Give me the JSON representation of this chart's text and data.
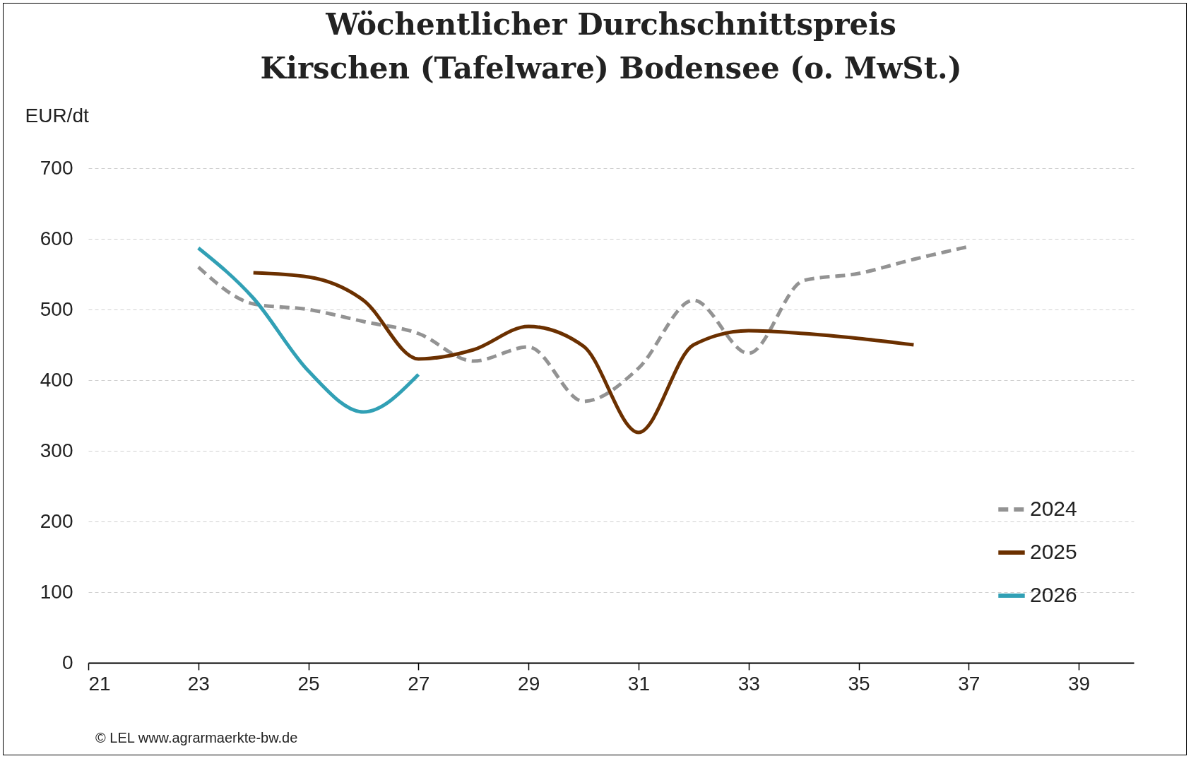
{
  "chart_data": {
    "type": "line",
    "title": [
      "Wöchentlicher Durchschnittspreis",
      "Kirschen (Tafelware) Bodensee (o. MwSt.)"
    ],
    "ylabel": "EUR/dt",
    "xlim": [
      21,
      40
    ],
    "xticks": [
      21,
      23,
      25,
      27,
      29,
      31,
      33,
      35,
      37,
      39
    ],
    "ylim": [
      0,
      700
    ],
    "yticks": [
      0,
      100,
      200,
      300,
      400,
      500,
      600,
      700
    ],
    "grid": "y",
    "legend": "bottom right",
    "series": [
      {
        "name": "2024",
        "color": "#939393",
        "line_style": "dashed",
        "x": [
          23,
          24,
          25,
          26,
          27,
          28,
          29,
          30,
          31,
          32,
          33,
          34,
          35,
          36,
          37
        ],
        "values": [
          560,
          508,
          500,
          483,
          466,
          427,
          447,
          370,
          417,
          513,
          438,
          541,
          551,
          571,
          589
        ]
      },
      {
        "name": "2025",
        "color": "#6b3000",
        "line_style": "solid",
        "x": [
          24,
          25,
          26,
          27,
          28,
          29,
          30,
          31,
          32,
          33,
          34,
          35,
          36
        ],
        "values": [
          552,
          546,
          513,
          430,
          443,
          476,
          448,
          326,
          450,
          470,
          466,
          459,
          450
        ]
      },
      {
        "name": "2026",
        "color": "#31a0b5",
        "line_style": "solid",
        "x": [
          23,
          24,
          25,
          26,
          27
        ],
        "values": [
          587,
          516,
          413,
          355,
          408
        ]
      }
    ],
    "annotations": [
      "© LEL www.agrarmaerkte-bw.de"
    ]
  }
}
